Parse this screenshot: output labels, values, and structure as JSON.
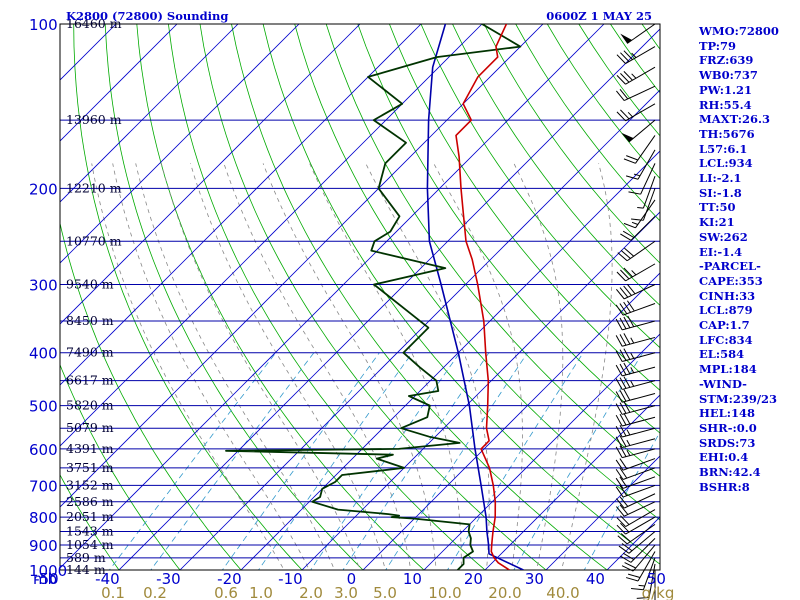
{
  "header": {
    "station": "K2800 (72800) Sounding",
    "time": "0600Z  1 MAY 25"
  },
  "indices": [
    "WMO:72800",
    "TP:79",
    "FRZ:639",
    "WB0:737",
    "PW:1.21",
    "RH:55.4",
    "MAXT:26.3",
    "TH:5676",
    "L57:6.1",
    "LCL:934",
    "LI:-2.1",
    "SI:-1.8",
    "TT:50",
    "KI:21",
    "SW:262",
    "EI:-1.4",
    "-PARCEL-",
    "CAPE:353",
    "CINH:33",
    "LCL:879",
    "CAP:1.7",
    "LFC:834",
    "EL:584",
    "MPL:184",
    "-WIND-",
    "STM:239/23",
    "HEL:148",
    "SHR-:0.0",
    "SRDS:73",
    "EHI:0.4",
    "BRN:42.4",
    "BSHR:8"
  ],
  "colors": {
    "isobar": "#0000aa",
    "isotherm": "#0000cc",
    "dry_adiabat": "#00aa00",
    "moist_adiabat": "#888888",
    "mixing_ratio": "#3399cc",
    "temperature": "#cc0000",
    "dewpoint": "#003300",
    "parcel": "#0000aa",
    "wind": "#000000",
    "mixing_ratio_label": "#a08a3c",
    "text": "#0000cc"
  },
  "chart_data": {
    "type": "line",
    "title": "K2800 (72800) Sounding",
    "pressure_ticks": [
      100,
      200,
      300,
      400,
      500,
      600,
      700,
      800,
      900,
      1000
    ],
    "pressure_unit": "mb",
    "height_labels": [
      {
        "p": 100,
        "h": "16460 m"
      },
      {
        "p": 150,
        "h": "13960 m"
      },
      {
        "p": 200,
        "h": "12210 m"
      },
      {
        "p": 250,
        "h": "10770 m"
      },
      {
        "p": 300,
        "h": "9540 m"
      },
      {
        "p": 350,
        "h": "8450 m"
      },
      {
        "p": 400,
        "h": "7490 m"
      },
      {
        "p": 450,
        "h": "6617 m"
      },
      {
        "p": 500,
        "h": "5820 m"
      },
      {
        "p": 550,
        "h": "5079 m"
      },
      {
        "p": 600,
        "h": "4391 m"
      },
      {
        "p": 650,
        "h": "3751 m"
      },
      {
        "p": 700,
        "h": "3152 m"
      },
      {
        "p": 750,
        "h": "2586 m"
      },
      {
        "p": 800,
        "h": "2051 m"
      },
      {
        "p": 850,
        "h": "1543 m"
      },
      {
        "p": 900,
        "h": "1054 m"
      },
      {
        "p": 950,
        "h": "589 m"
      },
      {
        "p": 1000,
        "h": "144 m"
      }
    ],
    "temp_ticks": [
      -50,
      -40,
      -30,
      -20,
      -10,
      0,
      10,
      20,
      30,
      40,
      50
    ],
    "mixing_ratio_ticks": [
      "0.1",
      "0.2",
      "0.6",
      "1.0",
      "2.0",
      "3.0",
      "5.0",
      "10.0",
      "20.0",
      "40.0"
    ],
    "mixing_ratio_unit": "g/kg",
    "temperature": [
      {
        "p": 1000,
        "t": 24
      },
      {
        "p": 970,
        "t": 21
      },
      {
        "p": 950,
        "t": 19.5
      },
      {
        "p": 925,
        "t": 18
      },
      {
        "p": 900,
        "t": 17
      },
      {
        "p": 875,
        "t": 16
      },
      {
        "p": 850,
        "t": 15
      },
      {
        "p": 800,
        "t": 13
      },
      {
        "p": 750,
        "t": 10.5
      },
      {
        "p": 700,
        "t": 7.5
      },
      {
        "p": 650,
        "t": 4
      },
      {
        "p": 600,
        "t": -0.5
      },
      {
        "p": 580,
        "t": -0.5
      },
      {
        "p": 550,
        "t": -3
      },
      {
        "p": 500,
        "t": -6.5
      },
      {
        "p": 450,
        "t": -10.5
      },
      {
        "p": 400,
        "t": -15.5
      },
      {
        "p": 350,
        "t": -21
      },
      {
        "p": 300,
        "t": -28
      },
      {
        "p": 270,
        "t": -33
      },
      {
        "p": 250,
        "t": -37
      },
      {
        "p": 225,
        "t": -41.5
      },
      {
        "p": 200,
        "t": -46.5
      },
      {
        "p": 175,
        "t": -52
      },
      {
        "p": 160,
        "t": -56
      },
      {
        "p": 150,
        "t": -56
      },
      {
        "p": 140,
        "t": -60
      },
      {
        "p": 125,
        "t": -62
      },
      {
        "p": 115,
        "t": -62
      },
      {
        "p": 110,
        "t": -64
      },
      {
        "p": 100,
        "t": -66
      }
    ],
    "dewpoint": [
      {
        "p": 1000,
        "t": 15.5
      },
      {
        "p": 975,
        "t": 15.5
      },
      {
        "p": 950,
        "t": 14.5
      },
      {
        "p": 925,
        "t": 15
      },
      {
        "p": 900,
        "t": 13.5
      },
      {
        "p": 875,
        "t": 12.5
      },
      {
        "p": 850,
        "t": 11
      },
      {
        "p": 825,
        "t": 10
      },
      {
        "p": 805,
        "t": 0
      },
      {
        "p": 800,
        "t": -4
      },
      {
        "p": 795,
        "t": -3
      },
      {
        "p": 790,
        "t": -5
      },
      {
        "p": 775,
        "t": -14
      },
      {
        "p": 750,
        "t": -19.5
      },
      {
        "p": 735,
        "t": -19
      },
      {
        "p": 710,
        "t": -20
      },
      {
        "p": 690,
        "t": -19
      },
      {
        "p": 670,
        "t": -19
      },
      {
        "p": 650,
        "t": -10
      },
      {
        "p": 625,
        "t": -16
      },
      {
        "p": 615,
        "t": -14
      },
      {
        "p": 605,
        "t": -42
      },
      {
        "p": 600,
        "t": -14
      },
      {
        "p": 585,
        "t": -5
      },
      {
        "p": 570,
        "t": -11
      },
      {
        "p": 550,
        "t": -17
      },
      {
        "p": 525,
        "t": -14.5
      },
      {
        "p": 500,
        "t": -16
      },
      {
        "p": 480,
        "t": -21
      },
      {
        "p": 470,
        "t": -17
      },
      {
        "p": 450,
        "t": -19
      },
      {
        "p": 425,
        "t": -24
      },
      {
        "p": 400,
        "t": -29
      },
      {
        "p": 360,
        "t": -29
      },
      {
        "p": 340,
        "t": -34
      },
      {
        "p": 300,
        "t": -45
      },
      {
        "p": 280,
        "t": -36
      },
      {
        "p": 260,
        "t": -51
      },
      {
        "p": 250,
        "t": -52
      },
      {
        "p": 240,
        "t": -51
      },
      {
        "p": 225,
        "t": -52
      },
      {
        "p": 200,
        "t": -60
      },
      {
        "p": 180,
        "t": -63
      },
      {
        "p": 165,
        "t": -63
      },
      {
        "p": 150,
        "t": -72
      },
      {
        "p": 140,
        "t": -70
      },
      {
        "p": 125,
        "t": -80
      },
      {
        "p": 115,
        "t": -72
      },
      {
        "p": 110,
        "t": -60
      },
      {
        "p": 100,
        "t": -70
      },
      {
        "p": 93,
        "t": -60
      }
    ],
    "parcel": [
      {
        "p": 1000,
        "t": 26.3
      },
      {
        "p": 934,
        "t": 18
      },
      {
        "p": 900,
        "t": 16.5
      },
      {
        "p": 850,
        "t": 14
      },
      {
        "p": 800,
        "t": 11.5
      },
      {
        "p": 700,
        "t": 5.5
      },
      {
        "p": 600,
        "t": -1.5
      },
      {
        "p": 500,
        "t": -9.5
      },
      {
        "p": 400,
        "t": -20
      },
      {
        "p": 300,
        "t": -34
      },
      {
        "p": 250,
        "t": -43
      },
      {
        "p": 200,
        "t": -52
      },
      {
        "p": 150,
        "t": -63
      },
      {
        "p": 120,
        "t": -71
      },
      {
        "p": 100,
        "t": -76
      },
      {
        "p": 94,
        "t": -78
      }
    ],
    "wind": [
      {
        "p": 1000,
        "dir": 180,
        "spd": 5
      },
      {
        "p": 975,
        "dir": 190,
        "spd": 10
      },
      {
        "p": 950,
        "dir": 200,
        "spd": 15
      },
      {
        "p": 925,
        "dir": 210,
        "spd": 20
      },
      {
        "p": 900,
        "dir": 220,
        "spd": 20
      },
      {
        "p": 875,
        "dir": 225,
        "spd": 20
      },
      {
        "p": 850,
        "dir": 230,
        "spd": 20
      },
      {
        "p": 825,
        "dir": 235,
        "spd": 20
      },
      {
        "p": 800,
        "dir": 240,
        "spd": 20
      },
      {
        "p": 775,
        "dir": 240,
        "spd": 20
      },
      {
        "p": 750,
        "dir": 245,
        "spd": 20
      },
      {
        "p": 725,
        "dir": 245,
        "spd": 20
      },
      {
        "p": 700,
        "dir": 250,
        "spd": 20
      },
      {
        "p": 675,
        "dir": 250,
        "spd": 20
      },
      {
        "p": 650,
        "dir": 250,
        "spd": 20
      },
      {
        "p": 625,
        "dir": 250,
        "spd": 20
      },
      {
        "p": 600,
        "dir": 255,
        "spd": 25
      },
      {
        "p": 575,
        "dir": 255,
        "spd": 25
      },
      {
        "p": 550,
        "dir": 255,
        "spd": 25
      },
      {
        "p": 525,
        "dir": 255,
        "spd": 30
      },
      {
        "p": 500,
        "dir": 255,
        "spd": 30
      },
      {
        "p": 475,
        "dir": 255,
        "spd": 30
      },
      {
        "p": 450,
        "dir": 255,
        "spd": 35
      },
      {
        "p": 425,
        "dir": 255,
        "spd": 35
      },
      {
        "p": 400,
        "dir": 255,
        "spd": 35
      },
      {
        "p": 375,
        "dir": 255,
        "spd": 35
      },
      {
        "p": 350,
        "dir": 255,
        "spd": 40
      },
      {
        "p": 325,
        "dir": 250,
        "spd": 40
      },
      {
        "p": 300,
        "dir": 245,
        "spd": 40
      },
      {
        "p": 275,
        "dir": 240,
        "spd": 35
      },
      {
        "p": 250,
        "dir": 235,
        "spd": 30
      },
      {
        "p": 225,
        "dir": 225,
        "spd": 20
      },
      {
        "p": 210,
        "dir": 215,
        "spd": 15
      },
      {
        "p": 200,
        "dir": 200,
        "spd": 10
      },
      {
        "p": 190,
        "dir": 200,
        "spd": 5
      },
      {
        "p": 180,
        "dir": 205,
        "spd": 10
      },
      {
        "p": 170,
        "dir": 210,
        "spd": 15
      },
      {
        "p": 160,
        "dir": 215,
        "spd": 20
      },
      {
        "p": 150,
        "dir": 230,
        "spd": 50
      },
      {
        "p": 140,
        "dir": 240,
        "spd": 25
      },
      {
        "p": 130,
        "dir": 245,
        "spd": 20
      },
      {
        "p": 120,
        "dir": 240,
        "spd": 35
      },
      {
        "p": 110,
        "dir": 240,
        "spd": 35
      },
      {
        "p": 100,
        "dir": 235,
        "spd": 50
      }
    ]
  }
}
